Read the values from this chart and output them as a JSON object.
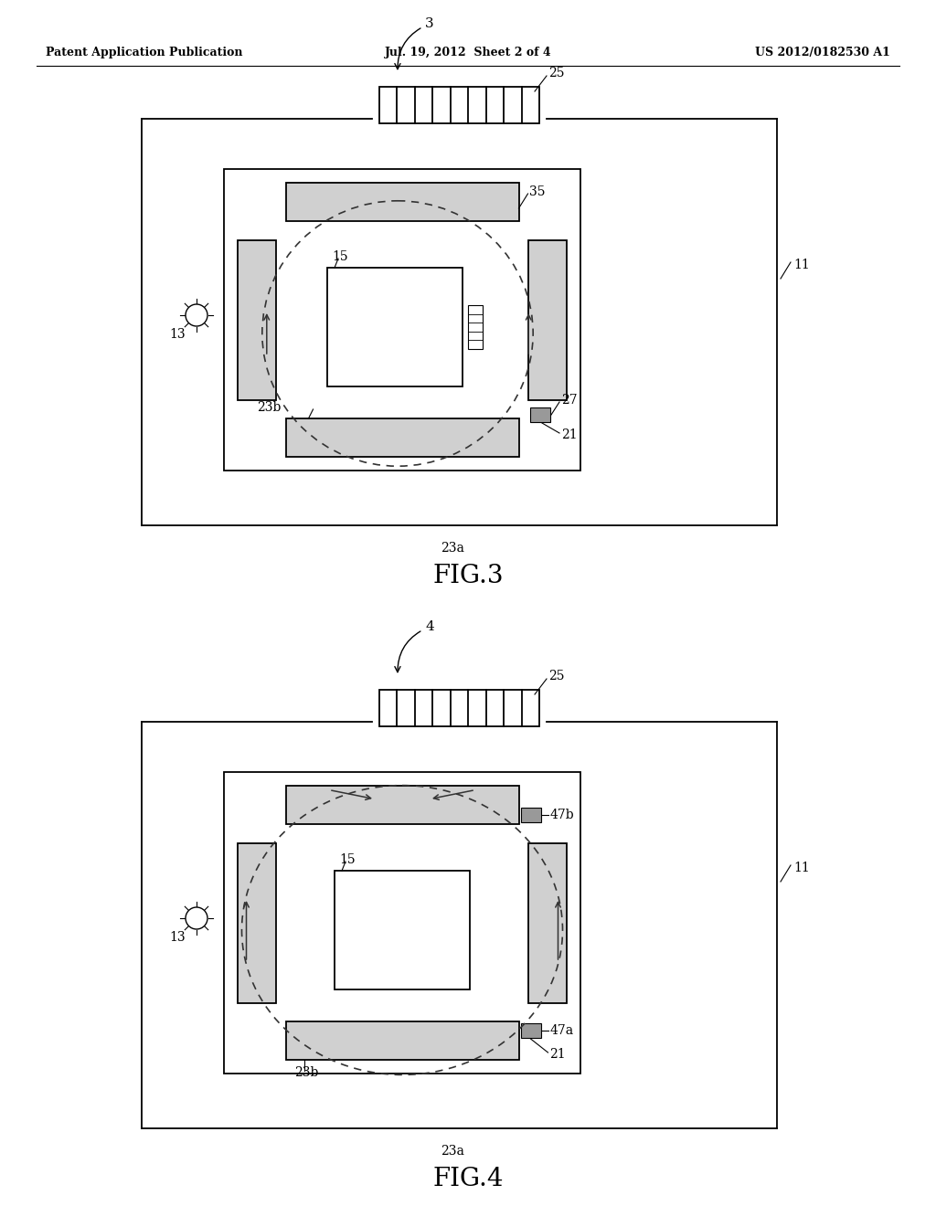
{
  "header_left": "Patent Application Publication",
  "header_mid": "Jul. 19, 2012  Sheet 2 of 4",
  "header_right": "US 2012/0182530 A1",
  "fig3_label": "FIG.3",
  "fig4_label": "FIG.4",
  "bg_color": "#ffffff",
  "lc": "#000000",
  "gray_fill": "#d0d0d0",
  "dark_gray_fill": "#aaaaaa",
  "dashed_color": "#333333"
}
